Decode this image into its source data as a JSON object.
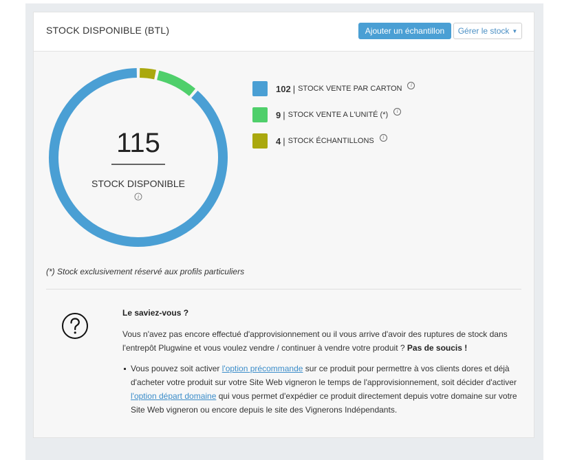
{
  "header": {
    "title": "STOCK DISPONIBLE (BTL)",
    "add_button": "Ajouter un échantillon",
    "manage_button": "Gérer le stock"
  },
  "donut": {
    "total": "115",
    "label": "STOCK DISPONIBLE"
  },
  "chart_data": {
    "type": "pie",
    "categories": [
      "STOCK VENTE PAR CARTON",
      "STOCK VENTE A L'UNITÉ (*)",
      "STOCK ÉCHANTILLONS"
    ],
    "values": [
      102,
      9,
      4
    ],
    "colors": [
      "#4a9fd4",
      "#4fcf6b",
      "#aaa80e"
    ],
    "donut": true
  },
  "legend": [
    {
      "value": "102",
      "sep": "|",
      "label": "STOCK VENTE PAR CARTON",
      "color": "#4a9fd4"
    },
    {
      "value": "9",
      "sep": "|",
      "label": "STOCK VENTE A L'UNITÉ (*)",
      "color": "#4fcf6b"
    },
    {
      "value": "4",
      "sep": "|",
      "label": "STOCK ÉCHANTILLONS",
      "color": "#aaa80e"
    }
  ],
  "info_glyph": "i",
  "footnote": "(*) Stock exclusivement réservé aux profils particuliers",
  "help": {
    "title": "Le saviez-vous ?",
    "para1": "Vous n'avez pas encore effectué d'approvisionnement ou il vous arrive d'avoir des ruptures de stock dans l'entrepôt Plugwine et vous voulez vendre / continuer à vendre votre produit ?",
    "para1_bold": "Pas de soucis !",
    "bullet_part1": "Vous pouvez soit activer ",
    "bullet_link1": "l'option précommande",
    "bullet_part2": " sur ce produit pour permettre à vos clients dores et déjà d'acheter votre produit sur votre Site Web vigneron le temps de l'approvisionnement, soit décider d'activer ",
    "bullet_link2": "l'option départ domaine",
    "bullet_part3": " qui vous permet d'expédier ce produit directement depuis votre domaine sur votre Site Web vigneron ou encore depuis le site des Vignerons Indépendants."
  }
}
